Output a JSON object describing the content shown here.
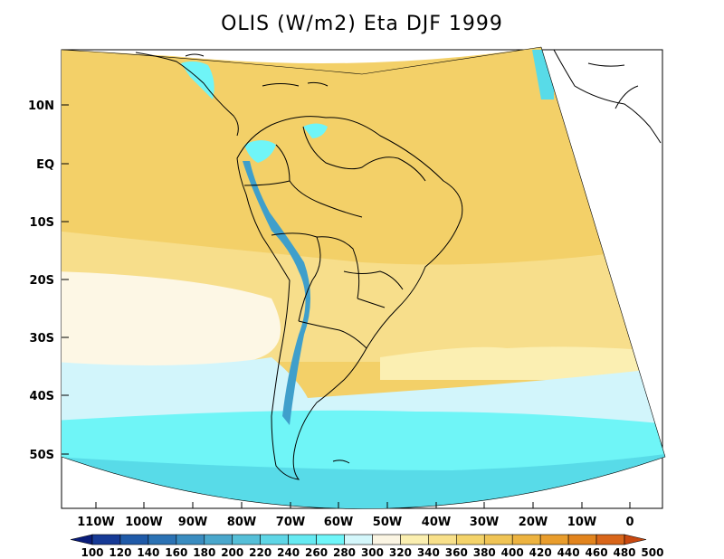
{
  "title": "OLIS (W/m2) Eta DJF 1999",
  "colors": {
    "background": "#ffffff",
    "frame": "#000000",
    "land_line": "#000000"
  },
  "axes": {
    "lat_ticks": [
      "10N",
      "EQ",
      "10S",
      "20S",
      "30S",
      "40S",
      "50S"
    ],
    "lon_ticks": [
      "110W",
      "100W",
      "90W",
      "80W",
      "70W",
      "60W",
      "50W",
      "40W",
      "30W",
      "20W",
      "10W",
      "0"
    ]
  },
  "colorbar": {
    "levels": [
      "100",
      "120",
      "140",
      "160",
      "180",
      "200",
      "220",
      "240",
      "260",
      "280",
      "300",
      "320",
      "340",
      "360",
      "380",
      "400",
      "420",
      "440",
      "460",
      "480",
      "500"
    ],
    "colors": [
      "#0a1d7a",
      "#163a96",
      "#1f5aa8",
      "#2b72b4",
      "#3a8cc0",
      "#4aa7cc",
      "#55bfd8",
      "#5fd6e6",
      "#66eaf2",
      "#6ff6f9",
      "#d4f7fb",
      "#fbf5e3",
      "#fbefb0",
      "#f8e08a",
      "#f4d36a",
      "#f0c455",
      "#edb340",
      "#e99d2c",
      "#e2841d",
      "#d9661a",
      "#c8480f"
    ]
  },
  "field_colors": {
    "yellow_high": "#f3d068",
    "yellow_mid": "#f7de8b",
    "yellow_light": "#fbefb2",
    "cream": "#fdf7e5",
    "light_cyan": "#d2f5fb",
    "cyan": "#6ff5f7",
    "cyan_deep": "#58dbe8",
    "blue_andes": "#3f9fcb",
    "blue_dark": "#2f7db8"
  }
}
